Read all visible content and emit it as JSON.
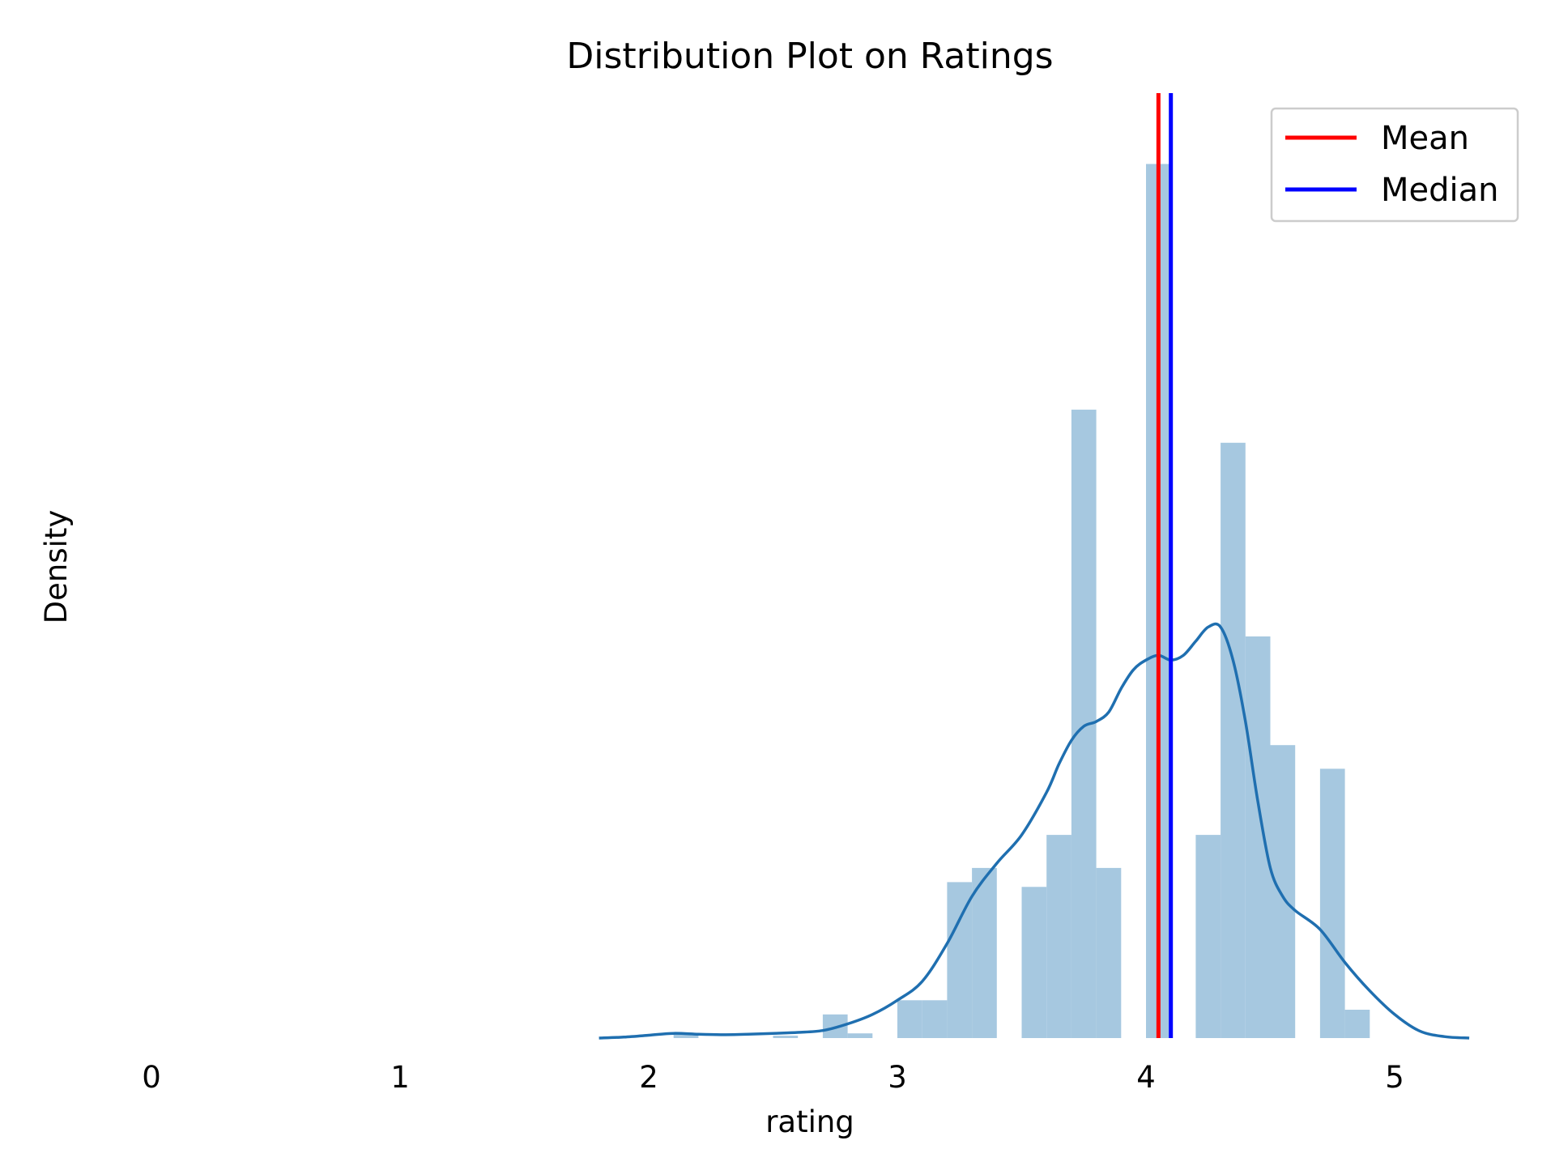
{
  "chart_data": {
    "type": "bar",
    "title": "Distribution Plot on Ratings",
    "xlabel": "rating",
    "ylabel": "Density",
    "xlim": [
      -0.6,
      5.32
    ],
    "ylim": [
      0,
      2.0
    ],
    "xticks": [
      0,
      1,
      2,
      3,
      4,
      5
    ],
    "yticks_visible": false,
    "grid": false,
    "colors": {
      "hist": "#a6c8e0",
      "kde": "#1f6fb0",
      "mean": "#ff0000",
      "median": "#0000ff",
      "legend_border": "#cccccc"
    },
    "legend": {
      "position": "top-right",
      "entries": [
        "Mean",
        "Median"
      ]
    },
    "histogram": {
      "bin_width": 0.1,
      "bins": [
        {
          "start": 2.1,
          "density": 0.01
        },
        {
          "start": 2.5,
          "density": 0.005
        },
        {
          "start": 2.7,
          "density": 0.05
        },
        {
          "start": 2.8,
          "density": 0.01
        },
        {
          "start": 3.0,
          "density": 0.08
        },
        {
          "start": 3.1,
          "density": 0.08
        },
        {
          "start": 3.2,
          "density": 0.33
        },
        {
          "start": 3.3,
          "density": 0.36
        },
        {
          "start": 3.5,
          "density": 0.32
        },
        {
          "start": 3.6,
          "density": 0.43
        },
        {
          "start": 3.7,
          "density": 1.33
        },
        {
          "start": 3.8,
          "density": 0.36
        },
        {
          "start": 4.0,
          "density": 1.85
        },
        {
          "start": 4.2,
          "density": 0.43
        },
        {
          "start": 4.3,
          "density": 1.26
        },
        {
          "start": 4.4,
          "density": 0.85
        },
        {
          "start": 4.5,
          "density": 0.62
        },
        {
          "start": 4.7,
          "density": 0.57
        },
        {
          "start": 4.8,
          "density": 0.06
        }
      ]
    },
    "kde": {
      "x": [
        1.8,
        1.9,
        2.0,
        2.1,
        2.2,
        2.3,
        2.4,
        2.5,
        2.6,
        2.7,
        2.8,
        2.9,
        3.0,
        3.1,
        3.2,
        3.3,
        3.4,
        3.5,
        3.6,
        3.65,
        3.7,
        3.75,
        3.8,
        3.85,
        3.9,
        3.95,
        4.0,
        4.05,
        4.1,
        4.15,
        4.2,
        4.25,
        4.3,
        4.35,
        4.4,
        4.45,
        4.5,
        4.55,
        4.6,
        4.7,
        4.8,
        4.9,
        5.0,
        5.1,
        5.2,
        5.3
      ],
      "y": [
        0.0,
        0.002,
        0.006,
        0.01,
        0.008,
        0.007,
        0.008,
        0.01,
        0.012,
        0.016,
        0.03,
        0.05,
        0.08,
        0.12,
        0.2,
        0.3,
        0.37,
        0.43,
        0.52,
        0.58,
        0.63,
        0.66,
        0.67,
        0.69,
        0.74,
        0.78,
        0.8,
        0.81,
        0.8,
        0.81,
        0.84,
        0.87,
        0.87,
        0.8,
        0.67,
        0.5,
        0.36,
        0.3,
        0.27,
        0.23,
        0.16,
        0.1,
        0.05,
        0.015,
        0.003,
        0.0
      ]
    },
    "mean": 4.05,
    "median": 4.1
  }
}
